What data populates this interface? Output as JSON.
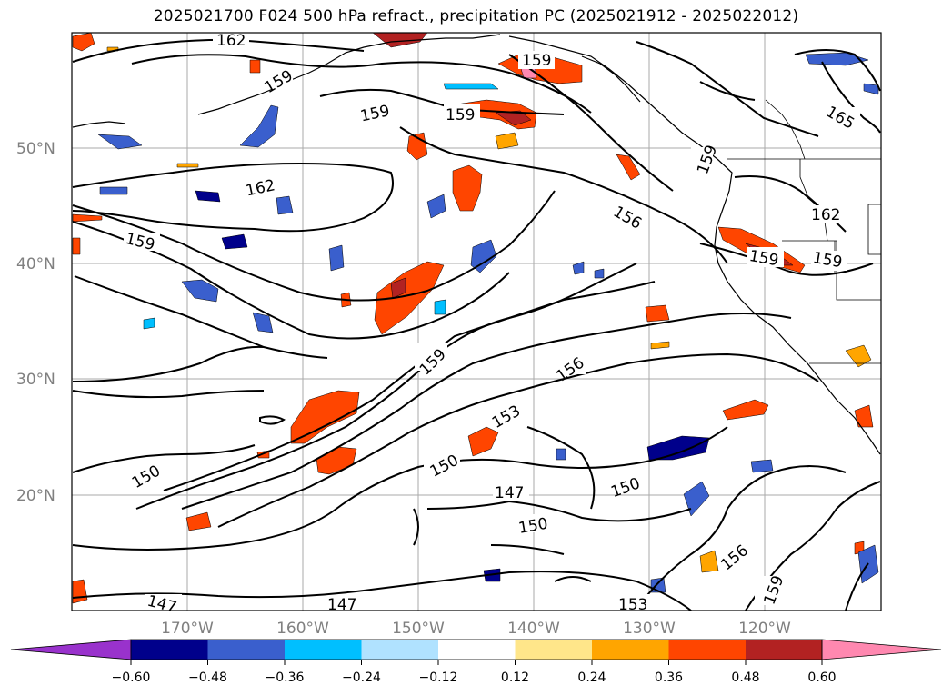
{
  "title": "2025021700 F024 500 hPa refract., precipitation PC (2025021912 - 2025022012)",
  "map": {
    "lat_labels": [
      "50°N",
      "40°N",
      "30°N",
      "20°N"
    ],
    "lon_labels": [
      "170°W",
      "160°W",
      "150°W",
      "140°W",
      "130°W",
      "120°W"
    ],
    "contour_labels": [
      "162",
      "159",
      "159",
      "159",
      "165",
      "162",
      "162",
      "159",
      "156",
      "159",
      "159",
      "159",
      "156",
      "153",
      "150",
      "150",
      "147",
      "150",
      "150",
      "156",
      "159",
      "147",
      "147",
      "153",
      "159",
      "159"
    ]
  },
  "colorbar": {
    "colors": [
      "#9932CC",
      "#00008B",
      "#3A5FCD",
      "#00BFFF",
      "#B0E2FF",
      "#FFFFFF",
      "#FFE68A",
      "#FFA500",
      "#FF4500",
      "#B22222",
      "#FF88B0"
    ],
    "ticks": [
      "−0.60",
      "−0.48",
      "−0.36",
      "−0.24",
      "−0.12",
      "0.12",
      "0.24",
      "0.36",
      "0.48",
      "0.60"
    ]
  }
}
